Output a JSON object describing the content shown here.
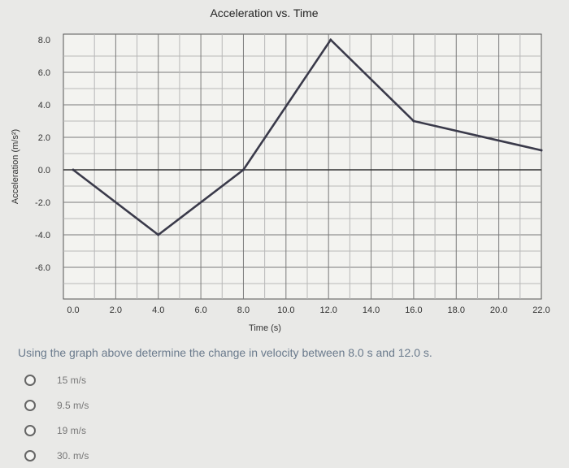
{
  "chart_data": {
    "type": "line",
    "title": "Acceleration vs. Time",
    "xlabel": "Time (s)",
    "ylabel": "Acceleration (m/s²)",
    "xlim": [
      0,
      22
    ],
    "ylim": [
      -8,
      8
    ],
    "x_ticks": [
      "0.0",
      "2.0",
      "4.0",
      "6.0",
      "8.0",
      "10.0",
      "12.0",
      "14.0",
      "16.0",
      "18.0",
      "20.0",
      "22.0"
    ],
    "y_ticks": [
      "8.0",
      "6.0",
      "4.0",
      "2.0",
      "0.0",
      "-2.0",
      "-4.0",
      "-6.0"
    ],
    "grid": true,
    "series": [
      {
        "x": [
          0,
          4,
          8,
          12.1,
          16,
          22
        ],
        "y": [
          0,
          -4,
          0,
          8,
          3,
          1.2
        ]
      }
    ]
  },
  "question": {
    "text": "Using the graph above determine the change in velocity between 8.0 s and 12.0 s.",
    "options": [
      "15 m/s",
      "9.5 m/s",
      "19 m/s",
      "30. m/s"
    ]
  }
}
